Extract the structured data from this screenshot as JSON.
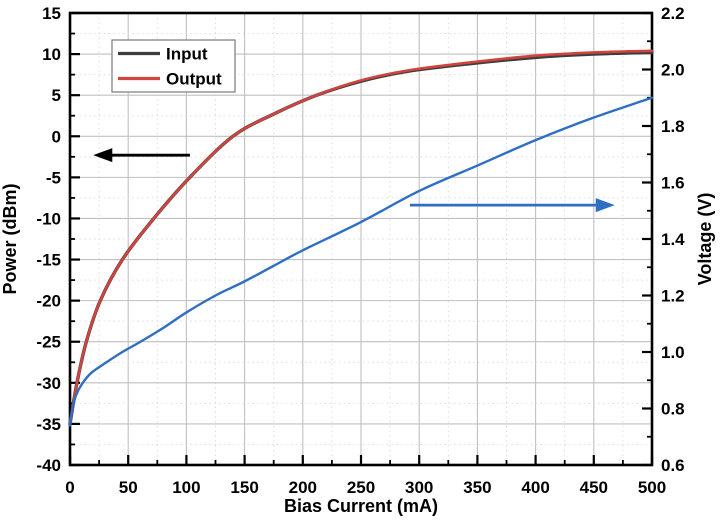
{
  "chart_data": {
    "type": "line",
    "title": "",
    "xlabel": "Bias Current (mA)",
    "ylabel_left": "Power (dBm)",
    "ylabel_right": "Voltage (V)",
    "x_range": [
      0,
      500
    ],
    "x_major_step": 50,
    "x_minor_step": 25,
    "y_left_range": [
      -40,
      15
    ],
    "y_left_major_step": 5,
    "y_left_minor_step": 2.5,
    "y_right_range": [
      0.6,
      2.2
    ],
    "y_right_major_step": 0.2,
    "y_right_minor_step": 0.1,
    "x_tick_labels": [
      "0",
      "50",
      "100",
      "150",
      "200",
      "250",
      "300",
      "350",
      "400",
      "450",
      "500"
    ],
    "y_left_tick_labels": [
      "15",
      "10",
      "5",
      "0",
      "-5",
      "-10",
      "-15",
      "-20",
      "-25",
      "-30",
      "-35",
      "-40"
    ],
    "y_right_tick_labels": [
      "2.2",
      "2.0",
      "1.8",
      "1.6",
      "1.4",
      "1.2",
      "1.0",
      "0.8",
      "0.6"
    ],
    "grid": {
      "major_color": "#c0c0c0",
      "minor_color": "#dedede",
      "minor_style": "dotted"
    },
    "frame_color": "#000000",
    "legend": {
      "position": "top-left",
      "entries": [
        {
          "label": "Input",
          "color": "#3d3d3d"
        },
        {
          "label": "Output",
          "color": "#d0443f"
        }
      ]
    },
    "series": [
      {
        "name": "Input",
        "axis": "left",
        "color": "#3d3d3d",
        "width": 3.4,
        "x": [
          0,
          6,
          14,
          26,
          45,
          72,
          103,
          140,
          175,
          212,
          250,
          290,
          345,
          400,
          450,
          500
        ],
        "y": [
          -35,
          -30,
          -25,
          -20,
          -15,
          -10,
          -5,
          0,
          2.7,
          5,
          6.7,
          7.9,
          8.85,
          9.6,
          10.0,
          10.2
        ]
      },
      {
        "name": "Output",
        "axis": "left",
        "color": "#d0443f",
        "width": 2.6,
        "x": [
          0,
          6,
          14,
          26,
          45,
          72,
          103,
          140,
          175,
          212,
          250,
          290,
          345,
          400,
          450,
          500
        ],
        "y": [
          -35,
          -30,
          -25,
          -20,
          -15,
          -10,
          -5,
          0,
          2.7,
          5,
          6.8,
          8.0,
          9.0,
          9.8,
          10.2,
          10.4
        ]
      },
      {
        "name": "Voltage",
        "axis": "right",
        "color": "#2e6ec4",
        "width": 2.4,
        "x": [
          0,
          2,
          5,
          10,
          18,
          30,
          45,
          60,
          80,
          100,
          125,
          150,
          175,
          200,
          250,
          300,
          350,
          400,
          450,
          500
        ],
        "y": [
          0.74,
          0.795,
          0.845,
          0.885,
          0.925,
          0.96,
          1.0,
          1.035,
          1.085,
          1.14,
          1.2,
          1.25,
          1.305,
          1.36,
          1.46,
          1.57,
          1.66,
          1.75,
          1.83,
          1.9
        ]
      }
    ],
    "annotations": [
      {
        "type": "arrow",
        "name": "left-axis-arrow",
        "color": "#000000",
        "axis": "left",
        "y": -2.3,
        "x_tail": 103,
        "x_head": 20,
        "direction": "left"
      },
      {
        "type": "arrow",
        "name": "right-axis-arrow",
        "color": "#2e6ec4",
        "axis": "right",
        "y": 1.52,
        "x_tail": 292,
        "x_head": 468,
        "direction": "right"
      }
    ]
  }
}
